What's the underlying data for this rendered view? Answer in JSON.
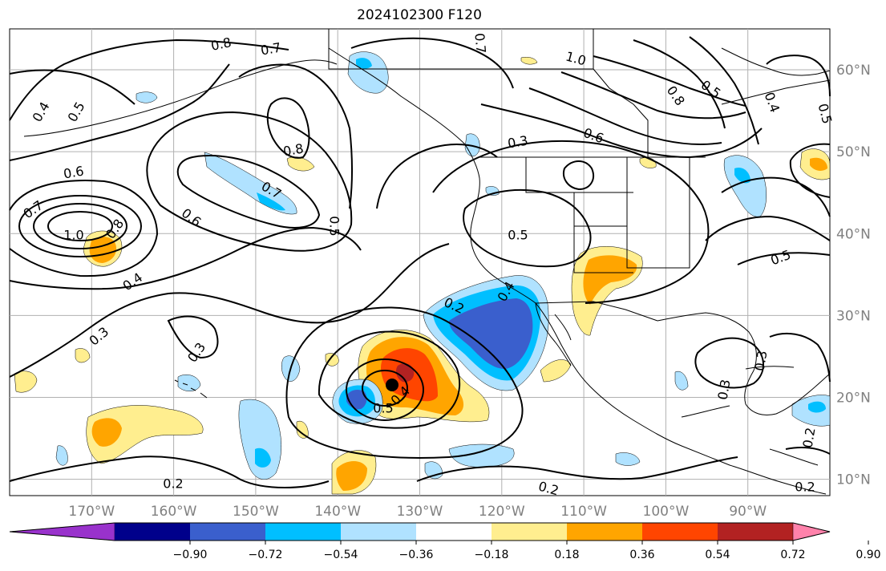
{
  "title": "2024102300 F120",
  "map": {
    "lon_range": [
      -180,
      -80
    ],
    "lat_range": [
      8,
      65
    ],
    "lon_labels": [
      "170°W",
      "160°W",
      "150°W",
      "140°W",
      "130°W",
      "120°W",
      "110°W",
      "100°W",
      "90°W"
    ],
    "lat_labels": [
      "60°N",
      "50°N",
      "40°N",
      "30°N",
      "20°N",
      "10°N"
    ],
    "gridlines": true
  },
  "colorbar": {
    "colors": [
      "#9932cc",
      "#00008b",
      "#3a5fcd",
      "#00bfff",
      "#b0e2ff",
      "#ffffff",
      "#ffee8f",
      "#ffa500",
      "#ff4500",
      "#b22222",
      "#ff82ab"
    ],
    "tick_labels": [
      "−0.90",
      "−0.72",
      "−0.54",
      "−0.36",
      "−0.18",
      "0.18",
      "0.36",
      "0.54",
      "0.72",
      "0.90"
    ],
    "extend": "both"
  },
  "contour_labels": [
    "0.8",
    "0.7",
    "0.4",
    "0.5",
    "1.0",
    "0.8",
    "0.6",
    "0.7",
    "0.8",
    "0.7",
    "0.6",
    "0.5",
    "0.4",
    "0.3",
    "0.3",
    "0.2",
    "0.2",
    "0.4",
    "0.5",
    "0.2",
    "0.3",
    "0.6",
    "0.7",
    "1.0",
    "0.8",
    "0.5",
    "0.4",
    "0.5",
    "0.5",
    "0.3",
    "0.3",
    "0.2",
    "0.2",
    "0.5",
    "0.4"
  ],
  "colors": {
    "grid": "#b0b0b0",
    "coast": "#000000",
    "label": "#808080"
  }
}
